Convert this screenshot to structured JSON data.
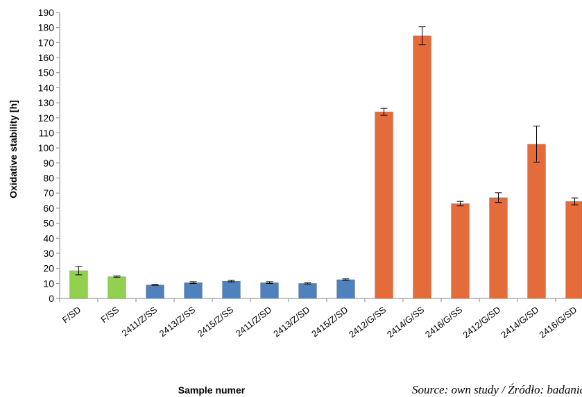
{
  "chart_data": {
    "type": "bar",
    "ylabel": "Oxidative stability [h]",
    "xlabel": "Sample numer",
    "ylim": [
      0,
      190
    ],
    "ytick_step": 10,
    "grid": false,
    "categories": [
      "F/SD",
      "F/SS",
      "2411/Z/SS",
      "2413/Z/SS",
      "2415/Z/SS",
      "2411/Z/SD",
      "2413/Z/SD",
      "2415/Z/SD",
      "2412/G/SS",
      "2414/G/SS",
      "2416/G/SS",
      "2412/G/SD",
      "2414/G/SD",
      "2416/G/SD"
    ],
    "values": [
      18.5,
      14.5,
      9,
      10.5,
      11.5,
      10.5,
      10,
      12.5,
      124,
      174.5,
      63,
      67,
      102.5,
      64.5
    ],
    "errors": [
      2.8,
      0.4,
      0.3,
      0.6,
      0.5,
      0.6,
      0.4,
      0.5,
      2.3,
      6,
      1.5,
      3.2,
      12,
      2.3
    ],
    "colors": [
      "#92d050",
      "#92d050",
      "#4f81bd",
      "#4f81bd",
      "#4f81bd",
      "#4f81bd",
      "#4f81bd",
      "#4f81bd",
      "#e36c3a",
      "#e36c3a",
      "#e36c3a",
      "#e36c3a",
      "#e36c3a",
      "#e36c3a"
    ]
  },
  "source_note": "Source: own study / Źródło: badania własne"
}
